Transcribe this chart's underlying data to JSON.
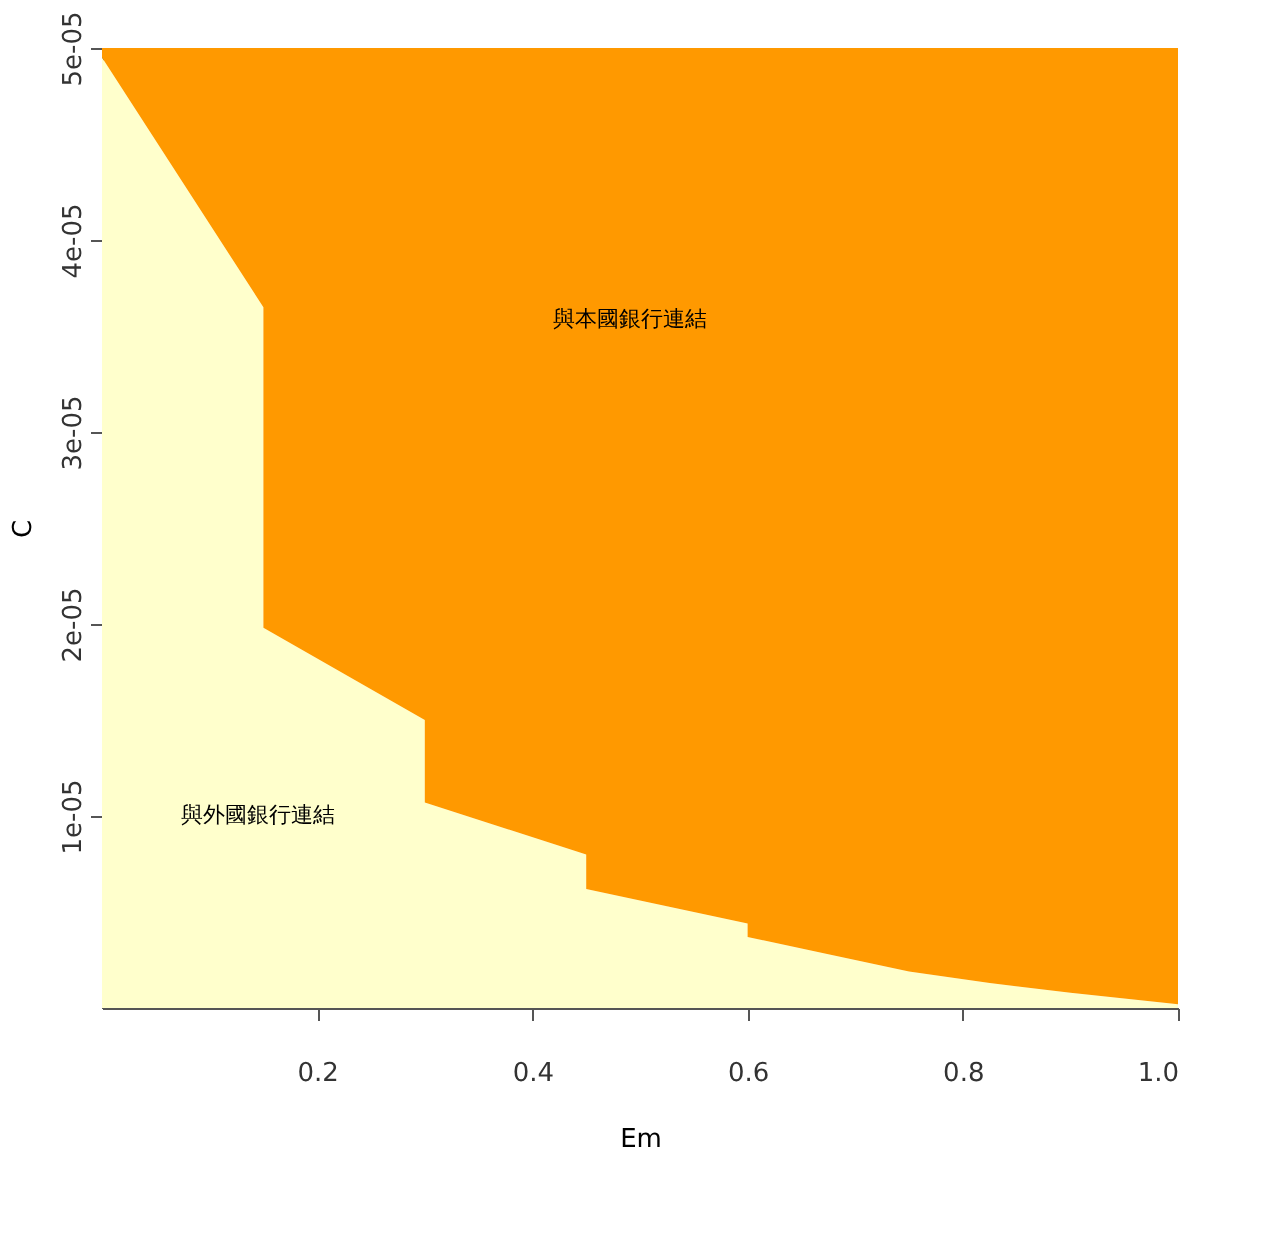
{
  "chart_data": {
    "type": "area",
    "stacked": true,
    "xlabel": "Em",
    "ylabel": "C",
    "x": [
      0,
      0.15,
      0.15,
      0.3,
      0.3,
      0.45,
      0.45,
      0.525,
      0.6,
      0.6,
      0.675,
      0.75,
      0.825,
      0.9,
      1.0
    ],
    "series": [
      {
        "color": "#ffffcc",
        "values": [
          4.95e-05,
          3.65e-05,
          1.98e-05,
          1.5e-05,
          1.07e-05,
          8e-06,
          6.2e-06,
          5.3e-06,
          4.4e-06,
          3.7e-06,
          2.8e-06,
          1.9e-06,
          1.3e-06,
          8e-07,
          2e-07
        ]
      },
      {
        "color": "#ff9900",
        "values": [
          5e-07,
          1.35e-05,
          3.02e-05,
          3.5e-05,
          3.93e-05,
          4.2e-05,
          4.38e-05,
          4.47e-05,
          4.56e-05,
          4.63e-05,
          4.72e-05,
          4.81e-05,
          4.87e-05,
          4.92e-05,
          4.98e-05
        ]
      }
    ],
    "xlim": [
      0,
      1.0
    ],
    "xticks": [
      0.2,
      0.4,
      0.6,
      0.8,
      {
        "value": 1.0,
        "label": "1.0"
      }
    ],
    "ylim": [
      0,
      5e-05
    ],
    "yticks": [
      {
        "value": 1e-05,
        "label": "1e-05"
      },
      {
        "value": 2e-05,
        "label": "2e-05"
      },
      {
        "value": 3e-05,
        "label": "3e-05"
      },
      {
        "value": 4e-05,
        "label": "4e-05"
      },
      {
        "value": 5e-05,
        "label": "5e-05"
      }
    ],
    "annotations": [
      "與本國銀行連結",
      "與外國銀行連結"
    ],
    "grid": false
  }
}
